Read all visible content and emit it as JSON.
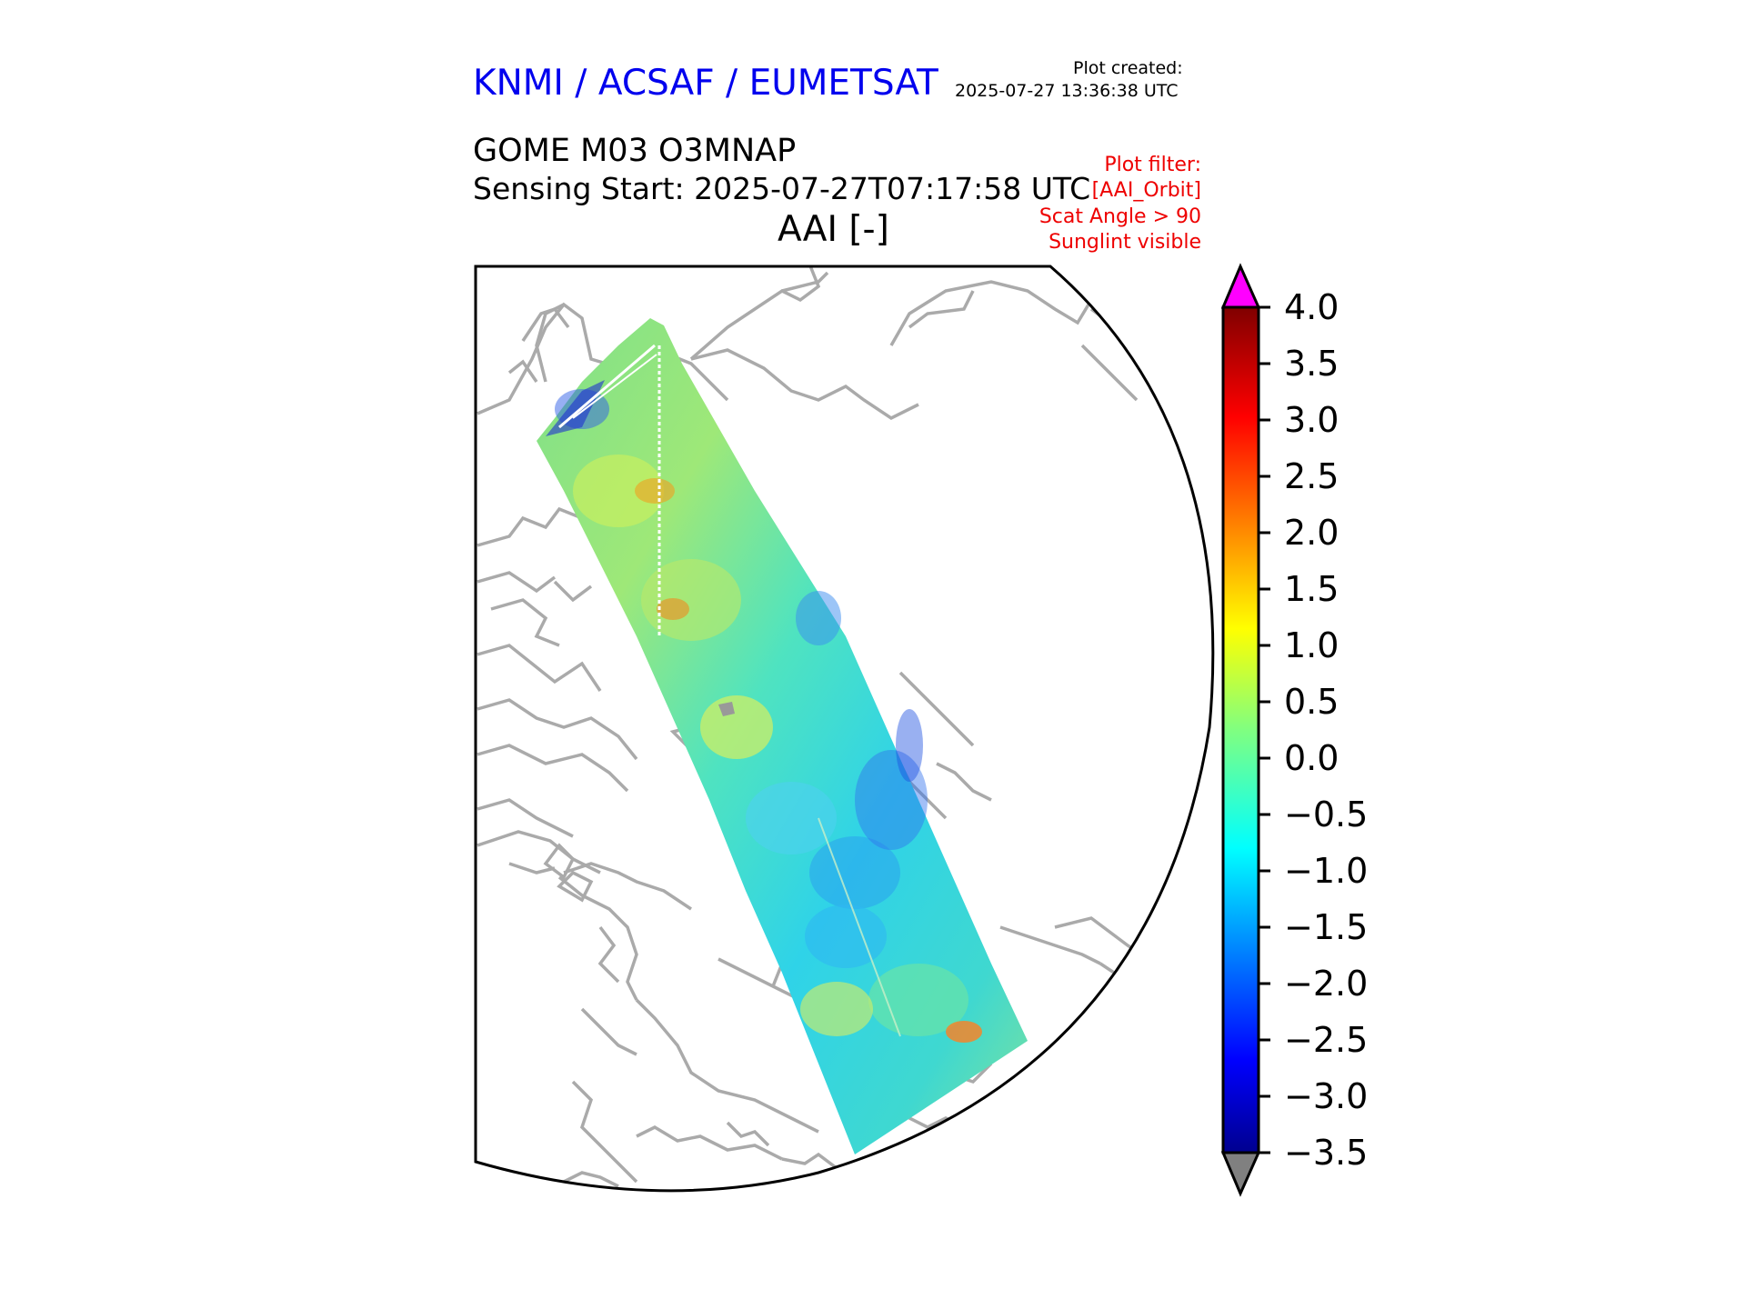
{
  "header": {
    "organization": "KNMI / ACSAF / EUMETSAT",
    "plot_created_label": "Plot created:",
    "plot_created_time": "2025-07-27 13:36:38 UTC",
    "product": "GOME M03 O3MNAP",
    "sensing_start": "Sensing Start: 2025-07-27T07:17:58 UTC",
    "variable_title": "AAI [-]"
  },
  "plot_filter": {
    "label": "Plot filter:",
    "name": "[AAI_Orbit]",
    "scat_angle": "Scat Angle > 90",
    "sunglint": "Sunglint visible"
  },
  "colorbar": {
    "min": -3.5,
    "max": 4.0,
    "tick_labels": [
      "4.0",
      "3.5",
      "3.0",
      "2.5",
      "2.0",
      "1.5",
      "1.0",
      "0.5",
      "0.0",
      "−0.5",
      "−1.0",
      "−1.5",
      "−2.0",
      "−2.5",
      "−3.0",
      "−3.5"
    ],
    "over_color": "#ff00ff",
    "under_color": "#808080",
    "colormap": "jet"
  },
  "map": {
    "coastline_color": "#aaaaaa",
    "swath_dominant_range": "-1.5 to 1.0"
  }
}
